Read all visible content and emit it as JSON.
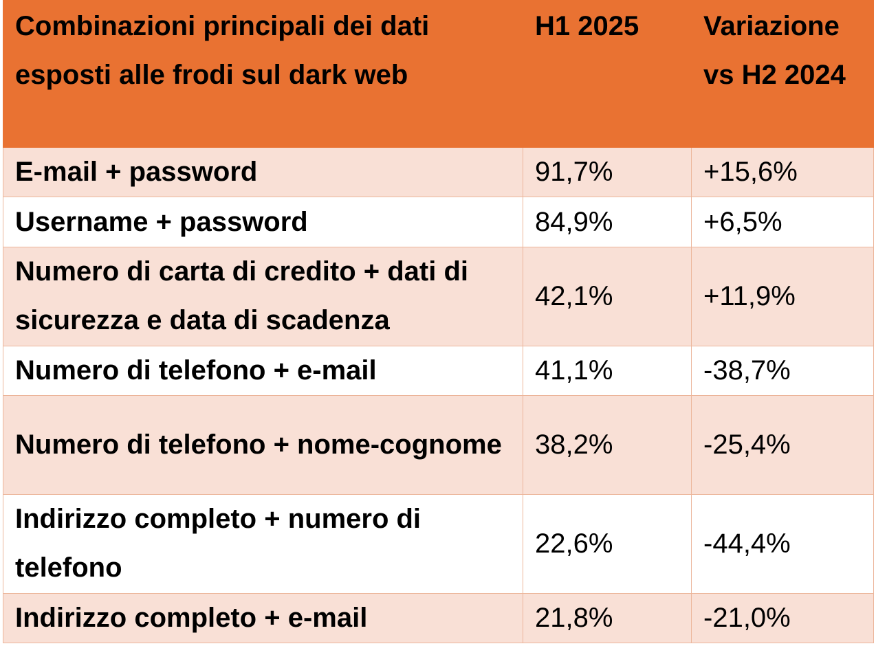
{
  "chart_data": {
    "type": "table",
    "columns": [
      "Combinazioni principali dei dati esposti alle frodi sul dark web",
      "H1 2025",
      "Variazione vs H2 2024"
    ],
    "rows": [
      {
        "label": "E-mail + password",
        "h1_2025": "91,7%",
        "variazione": "+15,6%"
      },
      {
        "label": "Username + password",
        "h1_2025": "84,9%",
        "variazione": "+6,5%"
      },
      {
        "label": "Numero di carta di credito + dati di sicurezza e data di scadenza",
        "h1_2025": "42,1%",
        "variazione": "+11,9%"
      },
      {
        "label": "Numero di telefono + e-mail",
        "h1_2025": "41,1%",
        "variazione": "-38,7%"
      },
      {
        "label": "Numero di telefono + nome-cognome",
        "h1_2025": "38,2%",
        "variazione": "-25,4%"
      },
      {
        "label": "Indirizzo completo + numero di telefono",
        "h1_2025": "22,6%",
        "variazione": "-44,4%"
      },
      {
        "label": "Indirizzo completo + e-mail",
        "h1_2025": "21,8%",
        "variazione": "-21,0%"
      }
    ],
    "colors": {
      "header_background": "#e97232",
      "band_background": "#f9e0d6",
      "grid_line": "#ecb59a"
    }
  }
}
